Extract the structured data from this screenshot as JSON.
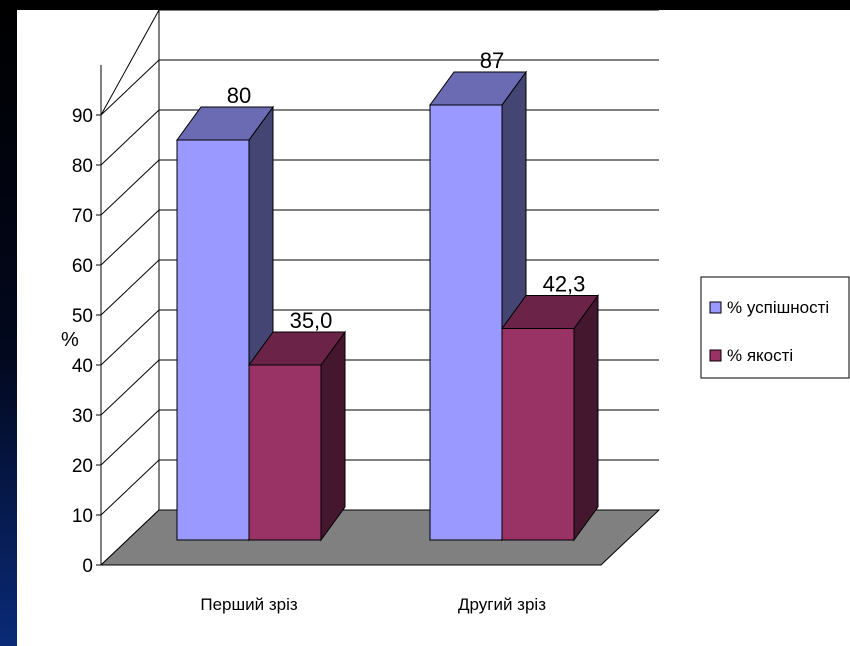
{
  "chart_data": {
    "type": "bar",
    "categories": [
      "Перший зріз",
      "Другий зріз"
    ],
    "series": [
      {
        "name": "% успішності",
        "values": [
          80,
          87
        ],
        "color": "#9999ff"
      },
      {
        "name": "% якості",
        "values": [
          35.0,
          42.3
        ],
        "color": "#993366"
      }
    ],
    "data_labels": [
      [
        "80",
        "87"
      ],
      [
        "35,0",
        "42,3"
      ]
    ],
    "ylabel": "%",
    "ylim": [
      0,
      90
    ],
    "yticks": [
      0,
      10,
      20,
      30,
      40,
      50,
      60,
      70,
      80,
      90
    ],
    "grid": true,
    "three_d": true,
    "legend": "right",
    "floor_color": "#808080"
  }
}
